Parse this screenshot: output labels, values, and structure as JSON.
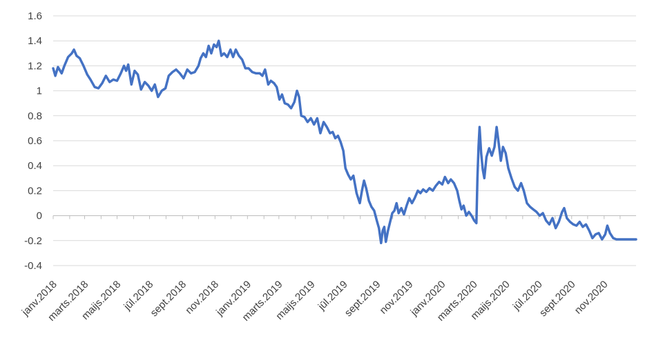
{
  "chart_data": {
    "type": "line",
    "title": "",
    "xlabel": "",
    "ylabel": "",
    "ylim": [
      -0.4,
      1.6
    ],
    "yticks": [
      -0.4,
      -0.2,
      0,
      0.2,
      0.4,
      0.6,
      0.8,
      1,
      1.2,
      1.4,
      1.6
    ],
    "ytick_labels": [
      "-0.4",
      "-0.2",
      "0",
      "0.2",
      "0.4",
      "0.6",
      "0.8",
      "1",
      "1.2",
      "1.4",
      "1.6"
    ],
    "grid": "horizontal",
    "legend": "none",
    "xlim": [
      "2018-01-01",
      "2020-12-31"
    ],
    "xtick_labels": [
      {
        "label": "janv.2018",
        "date": "2018-01-01"
      },
      {
        "label": "marts.2018",
        "date": "2018-03-01"
      },
      {
        "label": "maijs.2018",
        "date": "2018-05-01"
      },
      {
        "label": "jūl.2018",
        "date": "2018-07-01"
      },
      {
        "label": "sept.2018",
        "date": "2018-09-01"
      },
      {
        "label": "nov.2018",
        "date": "2018-11-01"
      },
      {
        "label": "janv.2019",
        "date": "2019-01-01"
      },
      {
        "label": "marts.2019",
        "date": "2019-03-01"
      },
      {
        "label": "maijs.2019",
        "date": "2019-05-01"
      },
      {
        "label": "jūl.2019",
        "date": "2019-07-01"
      },
      {
        "label": "sept.2019",
        "date": "2019-09-01"
      },
      {
        "label": "nov.2019",
        "date": "2019-11-01"
      },
      {
        "label": "janv.2020",
        "date": "2020-01-01"
      },
      {
        "label": "marts.2020",
        "date": "2020-03-01"
      },
      {
        "label": "maijs.2020",
        "date": "2020-05-01"
      },
      {
        "label": "jūl.2020",
        "date": "2020-07-01"
      },
      {
        "label": "sept.2020",
        "date": "2020-09-01"
      },
      {
        "label": "nov.2020",
        "date": "2020-11-01"
      }
    ],
    "series": [
      {
        "color": "#4472C4",
        "points": [
          [
            "2018-01-01",
            1.18
          ],
          [
            "2018-01-05",
            1.12
          ],
          [
            "2018-01-10",
            1.19
          ],
          [
            "2018-01-17",
            1.14
          ],
          [
            "2018-01-22",
            1.2
          ],
          [
            "2018-01-29",
            1.27
          ],
          [
            "2018-02-05",
            1.3
          ],
          [
            "2018-02-09",
            1.33
          ],
          [
            "2018-02-14",
            1.28
          ],
          [
            "2018-02-20",
            1.26
          ],
          [
            "2018-02-27",
            1.2
          ],
          [
            "2018-03-06",
            1.13
          ],
          [
            "2018-03-12",
            1.09
          ],
          [
            "2018-03-20",
            1.03
          ],
          [
            "2018-03-27",
            1.02
          ],
          [
            "2018-04-03",
            1.06
          ],
          [
            "2018-04-10",
            1.12
          ],
          [
            "2018-04-17",
            1.07
          ],
          [
            "2018-04-24",
            1.09
          ],
          [
            "2018-05-01",
            1.08
          ],
          [
            "2018-05-08",
            1.14
          ],
          [
            "2018-05-14",
            1.2
          ],
          [
            "2018-05-18",
            1.16
          ],
          [
            "2018-05-22",
            1.21
          ],
          [
            "2018-05-28",
            1.05
          ],
          [
            "2018-06-03",
            1.16
          ],
          [
            "2018-06-09",
            1.13
          ],
          [
            "2018-06-15",
            1.01
          ],
          [
            "2018-06-22",
            1.07
          ],
          [
            "2018-06-29",
            1.04
          ],
          [
            "2018-07-05",
            1.0
          ],
          [
            "2018-07-11",
            1.05
          ],
          [
            "2018-07-17",
            0.95
          ],
          [
            "2018-07-24",
            1.0
          ],
          [
            "2018-07-31",
            1.02
          ],
          [
            "2018-08-06",
            1.12
          ],
          [
            "2018-08-13",
            1.15
          ],
          [
            "2018-08-20",
            1.17
          ],
          [
            "2018-08-27",
            1.14
          ],
          [
            "2018-09-03",
            1.1
          ],
          [
            "2018-09-10",
            1.17
          ],
          [
            "2018-09-17",
            1.14
          ],
          [
            "2018-09-24",
            1.15
          ],
          [
            "2018-10-01",
            1.2
          ],
          [
            "2018-10-05",
            1.26
          ],
          [
            "2018-10-10",
            1.3
          ],
          [
            "2018-10-15",
            1.27
          ],
          [
            "2018-10-20",
            1.36
          ],
          [
            "2018-10-25",
            1.3
          ],
          [
            "2018-10-30",
            1.37
          ],
          [
            "2018-11-04",
            1.35
          ],
          [
            "2018-11-08",
            1.4
          ],
          [
            "2018-11-13",
            1.28
          ],
          [
            "2018-11-18",
            1.3
          ],
          [
            "2018-11-24",
            1.27
          ],
          [
            "2018-11-30",
            1.33
          ],
          [
            "2018-12-05",
            1.27
          ],
          [
            "2018-12-10",
            1.33
          ],
          [
            "2018-12-16",
            1.28
          ],
          [
            "2018-12-22",
            1.25
          ],
          [
            "2018-12-28",
            1.18
          ],
          [
            "2019-01-03",
            1.18
          ],
          [
            "2019-01-10",
            1.15
          ],
          [
            "2019-01-17",
            1.14
          ],
          [
            "2019-01-24",
            1.14
          ],
          [
            "2019-01-29",
            1.12
          ],
          [
            "2019-02-03",
            1.17
          ],
          [
            "2019-02-09",
            1.05
          ],
          [
            "2019-02-14",
            1.08
          ],
          [
            "2019-02-20",
            1.06
          ],
          [
            "2019-02-25",
            1.03
          ],
          [
            "2019-03-02",
            0.93
          ],
          [
            "2019-03-07",
            0.97
          ],
          [
            "2019-03-12",
            0.9
          ],
          [
            "2019-03-18",
            0.89
          ],
          [
            "2019-03-24",
            0.86
          ],
          [
            "2019-03-30",
            0.91
          ],
          [
            "2019-04-04",
            1.0
          ],
          [
            "2019-04-08",
            0.95
          ],
          [
            "2019-04-12",
            0.8
          ],
          [
            "2019-04-18",
            0.79
          ],
          [
            "2019-04-24",
            0.75
          ],
          [
            "2019-04-30",
            0.78
          ],
          [
            "2019-05-06",
            0.73
          ],
          [
            "2019-05-12",
            0.78
          ],
          [
            "2019-05-18",
            0.66
          ],
          [
            "2019-05-24",
            0.75
          ],
          [
            "2019-05-30",
            0.71
          ],
          [
            "2019-06-05",
            0.66
          ],
          [
            "2019-06-10",
            0.67
          ],
          [
            "2019-06-15",
            0.62
          ],
          [
            "2019-06-20",
            0.64
          ],
          [
            "2019-06-25",
            0.59
          ],
          [
            "2019-06-30",
            0.52
          ],
          [
            "2019-07-04",
            0.38
          ],
          [
            "2019-07-09",
            0.33
          ],
          [
            "2019-07-14",
            0.29
          ],
          [
            "2019-07-19",
            0.32
          ],
          [
            "2019-07-25",
            0.18
          ],
          [
            "2019-07-31",
            0.1
          ],
          [
            "2019-08-04",
            0.2
          ],
          [
            "2019-08-08",
            0.28
          ],
          [
            "2019-08-12",
            0.22
          ],
          [
            "2019-08-17",
            0.12
          ],
          [
            "2019-08-22",
            0.07
          ],
          [
            "2019-08-27",
            0.04
          ],
          [
            "2019-09-01",
            -0.04
          ],
          [
            "2019-09-05",
            -0.1
          ],
          [
            "2019-09-09",
            -0.22
          ],
          [
            "2019-09-12",
            -0.12
          ],
          [
            "2019-09-15",
            -0.09
          ],
          [
            "2019-09-18",
            -0.21
          ],
          [
            "2019-09-22",
            -0.12
          ],
          [
            "2019-09-26",
            -0.05
          ],
          [
            "2019-09-30",
            0.02
          ],
          [
            "2019-10-04",
            0.04
          ],
          [
            "2019-10-08",
            0.1
          ],
          [
            "2019-10-12",
            0.02
          ],
          [
            "2019-10-17",
            0.06
          ],
          [
            "2019-10-22",
            0.01
          ],
          [
            "2019-10-27",
            0.08
          ],
          [
            "2019-11-01",
            0.14
          ],
          [
            "2019-11-06",
            0.1
          ],
          [
            "2019-11-11",
            0.14
          ],
          [
            "2019-11-17",
            0.2
          ],
          [
            "2019-11-22",
            0.18
          ],
          [
            "2019-11-27",
            0.21
          ],
          [
            "2019-12-03",
            0.19
          ],
          [
            "2019-12-09",
            0.22
          ],
          [
            "2019-12-15",
            0.2
          ],
          [
            "2019-12-21",
            0.24
          ],
          [
            "2019-12-27",
            0.27
          ],
          [
            "2020-01-02",
            0.25
          ],
          [
            "2020-01-07",
            0.31
          ],
          [
            "2020-01-13",
            0.26
          ],
          [
            "2020-01-18",
            0.29
          ],
          [
            "2020-01-24",
            0.26
          ],
          [
            "2020-01-30",
            0.2
          ],
          [
            "2020-02-03",
            0.12
          ],
          [
            "2020-02-07",
            0.05
          ],
          [
            "2020-02-11",
            0.08
          ],
          [
            "2020-02-16",
            0.0
          ],
          [
            "2020-02-21",
            0.03
          ],
          [
            "2020-02-26",
            0.0
          ],
          [
            "2020-03-02",
            -0.04
          ],
          [
            "2020-03-06",
            -0.06
          ],
          [
            "2020-03-08",
            0.3
          ],
          [
            "2020-03-10",
            0.55
          ],
          [
            "2020-03-12",
            0.71
          ],
          [
            "2020-03-15",
            0.5
          ],
          [
            "2020-03-18",
            0.37
          ],
          [
            "2020-03-21",
            0.3
          ],
          [
            "2020-03-25",
            0.47
          ],
          [
            "2020-03-30",
            0.54
          ],
          [
            "2020-04-04",
            0.48
          ],
          [
            "2020-04-09",
            0.55
          ],
          [
            "2020-04-13",
            0.71
          ],
          [
            "2020-04-17",
            0.58
          ],
          [
            "2020-04-21",
            0.44
          ],
          [
            "2020-04-25",
            0.55
          ],
          [
            "2020-04-30",
            0.5
          ],
          [
            "2020-05-05",
            0.38
          ],
          [
            "2020-05-11",
            0.3
          ],
          [
            "2020-05-17",
            0.23
          ],
          [
            "2020-05-23",
            0.2
          ],
          [
            "2020-05-29",
            0.26
          ],
          [
            "2020-06-03",
            0.2
          ],
          [
            "2020-06-09",
            0.1
          ],
          [
            "2020-06-15",
            0.07
          ],
          [
            "2020-06-21",
            0.05
          ],
          [
            "2020-06-27",
            0.03
          ],
          [
            "2020-07-03",
            0.0
          ],
          [
            "2020-07-09",
            0.02
          ],
          [
            "2020-07-15",
            -0.04
          ],
          [
            "2020-07-21",
            -0.07
          ],
          [
            "2020-07-27",
            -0.02
          ],
          [
            "2020-08-02",
            -0.1
          ],
          [
            "2020-08-08",
            -0.05
          ],
          [
            "2020-08-14",
            0.03
          ],
          [
            "2020-08-18",
            0.06
          ],
          [
            "2020-08-23",
            -0.02
          ],
          [
            "2020-08-29",
            -0.05
          ],
          [
            "2020-09-04",
            -0.07
          ],
          [
            "2020-09-10",
            -0.08
          ],
          [
            "2020-09-16",
            -0.05
          ],
          [
            "2020-09-22",
            -0.09
          ],
          [
            "2020-09-28",
            -0.07
          ],
          [
            "2020-10-04",
            -0.12
          ],
          [
            "2020-10-10",
            -0.18
          ],
          [
            "2020-10-16",
            -0.15
          ],
          [
            "2020-10-22",
            -0.14
          ],
          [
            "2020-10-28",
            -0.19
          ],
          [
            "2020-11-03",
            -0.15
          ],
          [
            "2020-11-07",
            -0.08
          ],
          [
            "2020-11-12",
            -0.14
          ],
          [
            "2020-11-18",
            -0.18
          ],
          [
            "2020-11-24",
            -0.19
          ],
          [
            "2020-11-30",
            -0.19
          ],
          [
            "2020-12-06",
            -0.19
          ],
          [
            "2020-12-31",
            -0.19
          ]
        ]
      }
    ]
  }
}
